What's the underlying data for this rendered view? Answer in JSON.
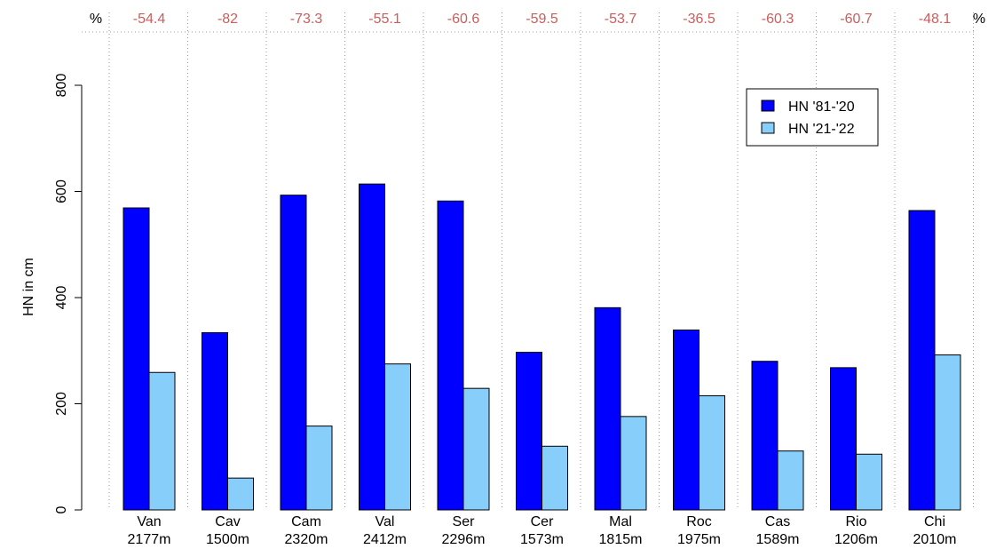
{
  "chart_data": {
    "type": "bar",
    "ylabel": "HN in cm",
    "ylim": [
      0,
      800
    ],
    "yticks": [
      "0",
      "200",
      "400",
      "600",
      "800"
    ],
    "top_axis_label": "%",
    "categories": [
      "Van",
      "Cav",
      "Cam",
      "Val",
      "Ser",
      "Cer",
      "Mal",
      "Roc",
      "Cas",
      "Rio",
      "Chi"
    ],
    "elevations": [
      "2177m",
      "1500m",
      "2320m",
      "2412m",
      "2296m",
      "1573m",
      "1815m",
      "1975m",
      "1589m",
      "1206m",
      "2010m"
    ],
    "percent_change": [
      "-54.4",
      "-82",
      "-73.3",
      "-55.1",
      "-60.6",
      "-59.5",
      "-53.7",
      "-36.5",
      "-60.3",
      "-60.7",
      "-48.1"
    ],
    "series": [
      {
        "name": "HN '81-'20",
        "color": "#0000ff",
        "values": [
          569,
          334,
          593,
          614,
          582,
          297,
          381,
          339,
          280,
          268,
          564
        ]
      },
      {
        "name": "HN '21-'22",
        "color": "#87cefa",
        "values": [
          259,
          60,
          158,
          275,
          229,
          120,
          176,
          215,
          111,
          105,
          292
        ]
      }
    ],
    "legend_position": "top-right",
    "percent_color": "#cd5c5c",
    "grid": "dotted vertical separators between groups"
  }
}
